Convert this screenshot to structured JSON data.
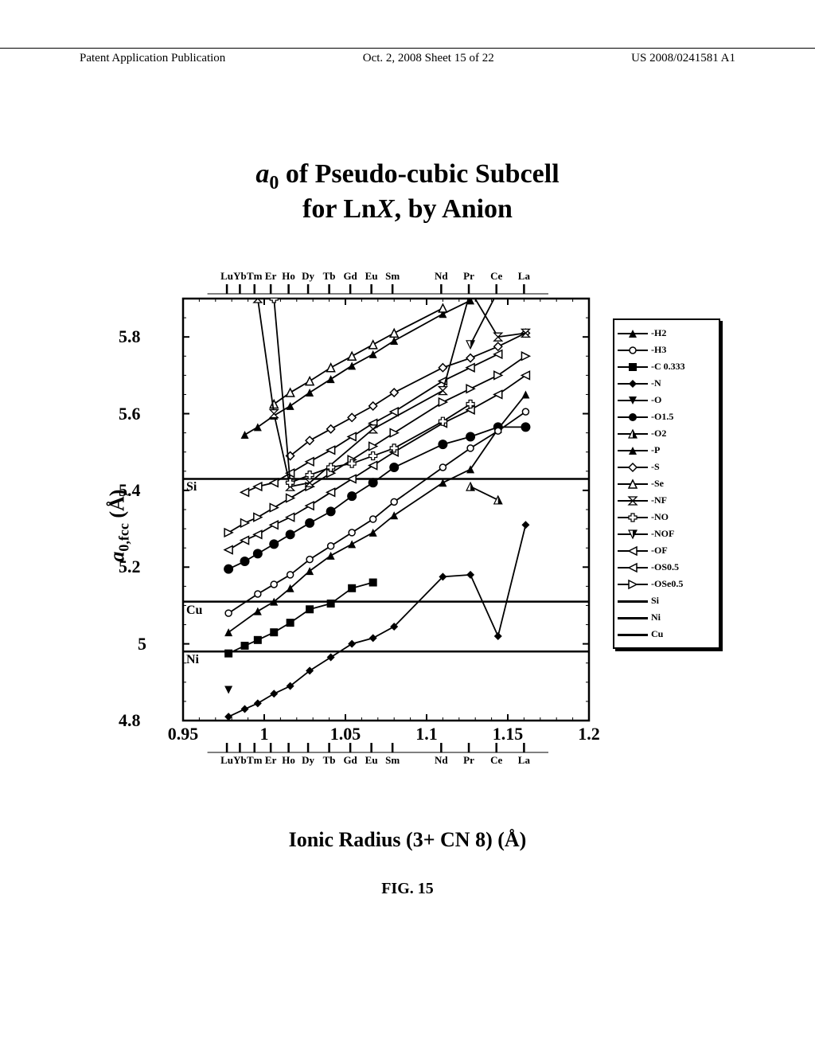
{
  "header": {
    "left": "Patent Application Publication",
    "center": "Oct. 2, 2008  Sheet 15 of 22",
    "right": "US 2008/0241581 A1"
  },
  "title": {
    "line1_italic": "a",
    "line1_sub": "0",
    "line1_rest": " of Pseudo-cubic Subcell",
    "line2": "for Ln",
    "line2_italic": "X",
    "line2_rest": ", by Anion"
  },
  "axes": {
    "xlabel": "Ionic Radius (3+ CN 8) (Å)",
    "ylabel_a": "a",
    "ylabel_sub": "0,fcc",
    "ylabel_unit": " (Å)",
    "xlim": [
      0.95,
      1.2
    ],
    "ylim": [
      4.8,
      5.9
    ],
    "xticks": [
      0.95,
      1,
      1.05,
      1.1,
      1.15,
      1.2
    ],
    "yticks": [
      4.8,
      5,
      5.2,
      5.4,
      5.6,
      5.8
    ]
  },
  "top_elements": [
    {
      "label": "Lu",
      "x": 0.977
    },
    {
      "label": "Yb",
      "x": 0.985
    },
    {
      "label": "Tm",
      "x": 0.994
    },
    {
      "label": "Er",
      "x": 1.004
    },
    {
      "label": "Ho",
      "x": 1.015
    },
    {
      "label": "Dy",
      "x": 1.027
    },
    {
      "label": "Tb",
      "x": 1.04
    },
    {
      "label": "Gd",
      "x": 1.053
    },
    {
      "label": "Eu",
      "x": 1.066
    },
    {
      "label": "Sm",
      "x": 1.079
    },
    {
      "label": "Nd",
      "x": 1.109
    },
    {
      "label": "Pr",
      "x": 1.126
    },
    {
      "label": "Ce",
      "x": 1.143
    },
    {
      "label": "La",
      "x": 1.16
    }
  ],
  "hlines": [
    {
      "label": "Si",
      "y": 5.43
    },
    {
      "label": "Cu",
      "y": 5.11
    },
    {
      "label": "Ni",
      "y": 4.98
    }
  ],
  "legend": [
    {
      "label": "-H2",
      "marker": "tri-up-filled"
    },
    {
      "label": "-H3",
      "marker": "circle-open"
    },
    {
      "label": "-C 0.333",
      "marker": "square-filled"
    },
    {
      "label": "-N",
      "marker": "diamond-filled"
    },
    {
      "label": "-O",
      "marker": "tri-down-filled"
    },
    {
      "label": "-O1.5",
      "marker": "circle-filled"
    },
    {
      "label": "-O2",
      "marker": "tri-up-half"
    },
    {
      "label": "-P",
      "marker": "tri-up-filled"
    },
    {
      "label": "-S",
      "marker": "diamond-open"
    },
    {
      "label": "-Se",
      "marker": "tri-up-open"
    },
    {
      "label": "-NF",
      "marker": "hourglass"
    },
    {
      "label": "-NO",
      "marker": "plus-open"
    },
    {
      "label": "-NOF",
      "marker": "tri-down-half"
    },
    {
      "label": "-OF",
      "marker": "tri-left-open"
    },
    {
      "label": "-OS0.5",
      "marker": "tri-left-open"
    },
    {
      "label": "-OSe0.5",
      "marker": "tri-right-open"
    },
    {
      "label": "Si",
      "marker": "line"
    },
    {
      "label": "Ni",
      "marker": "line"
    },
    {
      "label": "Cu",
      "marker": "line"
    }
  ],
  "series": {
    "N": [
      [
        0.978,
        4.81
      ],
      [
        0.988,
        4.83
      ],
      [
        0.996,
        4.845
      ],
      [
        1.006,
        4.87
      ],
      [
        1.016,
        4.89
      ],
      [
        1.028,
        4.93
      ],
      [
        1.041,
        4.965
      ],
      [
        1.054,
        5.0
      ],
      [
        1.067,
        5.015
      ],
      [
        1.08,
        5.045
      ],
      [
        1.11,
        5.175
      ],
      [
        1.127,
        5.18
      ],
      [
        1.144,
        5.02
      ],
      [
        1.161,
        5.31
      ]
    ],
    "C": [
      [
        0.978,
        4.975
      ],
      [
        0.988,
        4.995
      ],
      [
        0.996,
        5.01
      ],
      [
        1.006,
        5.03
      ],
      [
        1.016,
        5.055
      ],
      [
        1.028,
        5.09
      ],
      [
        1.041,
        5.105
      ],
      [
        1.054,
        5.145
      ],
      [
        1.067,
        5.16
      ]
    ],
    "O": [
      [
        0.978,
        4.88
      ]
    ],
    "H2": [
      [
        0.978,
        5.03
      ],
      [
        0.996,
        5.085
      ],
      [
        1.006,
        5.11
      ],
      [
        1.016,
        5.145
      ],
      [
        1.028,
        5.19
      ],
      [
        1.041,
        5.23
      ],
      [
        1.054,
        5.26
      ],
      [
        1.067,
        5.29
      ],
      [
        1.08,
        5.335
      ],
      [
        1.11,
        5.42
      ],
      [
        1.127,
        5.455
      ],
      [
        1.144,
        5.56
      ],
      [
        1.161,
        5.65
      ]
    ],
    "P": [
      [
        0.988,
        5.545
      ],
      [
        0.996,
        5.565
      ],
      [
        1.006,
        5.595
      ],
      [
        1.016,
        5.62
      ],
      [
        1.028,
        5.655
      ],
      [
        1.041,
        5.69
      ],
      [
        1.054,
        5.725
      ],
      [
        1.067,
        5.755
      ],
      [
        1.08,
        5.79
      ],
      [
        1.11,
        5.86
      ],
      [
        1.127,
        5.895
      ]
    ],
    "O15": [
      [
        0.978,
        5.195
      ],
      [
        0.988,
        5.215
      ],
      [
        0.996,
        5.235
      ],
      [
        1.006,
        5.26
      ],
      [
        1.016,
        5.285
      ],
      [
        1.028,
        5.315
      ],
      [
        1.041,
        5.345
      ],
      [
        1.054,
        5.385
      ],
      [
        1.067,
        5.42
      ],
      [
        1.08,
        5.46
      ],
      [
        1.11,
        5.52
      ],
      [
        1.127,
        5.54
      ],
      [
        1.144,
        5.565
      ],
      [
        1.161,
        5.565
      ]
    ],
    "S": [
      [
        1.016,
        5.49
      ],
      [
        1.028,
        5.53
      ],
      [
        1.041,
        5.56
      ],
      [
        1.054,
        5.59
      ],
      [
        1.067,
        5.62
      ],
      [
        1.08,
        5.655
      ],
      [
        1.11,
        5.72
      ],
      [
        1.127,
        5.745
      ],
      [
        1.144,
        5.775
      ],
      [
        1.161,
        5.81
      ]
    ],
    "Se": [
      [
        1.006,
        5.625
      ],
      [
        1.016,
        5.655
      ],
      [
        1.028,
        5.685
      ],
      [
        1.041,
        5.72
      ],
      [
        1.054,
        5.75
      ],
      [
        1.067,
        5.78
      ],
      [
        1.08,
        5.81
      ],
      [
        1.11,
        5.875
      ]
    ],
    "H3": [
      [
        0.978,
        5.08
      ],
      [
        0.996,
        5.13
      ],
      [
        1.006,
        5.155
      ],
      [
        1.016,
        5.18
      ],
      [
        1.028,
        5.22
      ],
      [
        1.041,
        5.255
      ],
      [
        1.054,
        5.29
      ],
      [
        1.067,
        5.325
      ],
      [
        1.08,
        5.37
      ],
      [
        1.11,
        5.46
      ],
      [
        1.127,
        5.51
      ],
      [
        1.144,
        5.555
      ],
      [
        1.161,
        5.605
      ]
    ],
    "OF": [
      [
        0.988,
        5.395
      ],
      [
        0.996,
        5.41
      ],
      [
        1.006,
        5.42
      ],
      [
        1.016,
        5.445
      ],
      [
        1.028,
        5.475
      ],
      [
        1.041,
        5.505
      ],
      [
        1.054,
        5.54
      ],
      [
        1.067,
        5.575
      ],
      [
        1.08,
        5.605
      ],
      [
        1.11,
        5.685
      ],
      [
        1.127,
        5.72
      ],
      [
        1.144,
        5.755
      ]
    ],
    "OS": [
      [
        0.978,
        5.245
      ],
      [
        0.988,
        5.27
      ],
      [
        0.996,
        5.285
      ],
      [
        1.006,
        5.31
      ],
      [
        1.016,
        5.33
      ],
      [
        1.028,
        5.36
      ],
      [
        1.041,
        5.395
      ],
      [
        1.054,
        5.43
      ],
      [
        1.067,
        5.465
      ],
      [
        1.08,
        5.5
      ],
      [
        1.11,
        5.575
      ],
      [
        1.127,
        5.61
      ],
      [
        1.144,
        5.65
      ],
      [
        1.161,
        5.7
      ]
    ],
    "OSe": [
      [
        0.978,
        5.29
      ],
      [
        0.988,
        5.315
      ],
      [
        0.996,
        5.33
      ],
      [
        1.006,
        5.355
      ],
      [
        1.016,
        5.38
      ],
      [
        1.028,
        5.41
      ],
      [
        1.041,
        5.445
      ],
      [
        1.054,
        5.48
      ],
      [
        1.067,
        5.515
      ],
      [
        1.08,
        5.55
      ],
      [
        1.11,
        5.63
      ],
      [
        1.127,
        5.665
      ],
      [
        1.144,
        5.7
      ],
      [
        1.161,
        5.75
      ]
    ],
    "NF": [
      [
        0.996,
        5.9
      ],
      [
        1.006,
        5.6
      ],
      [
        1.016,
        5.41
      ],
      [
        1.028,
        5.42
      ],
      [
        1.067,
        5.56
      ],
      [
        1.11,
        5.66
      ],
      [
        1.127,
        5.92
      ],
      [
        1.144,
        5.8
      ],
      [
        1.161,
        5.81
      ]
    ],
    "NO": [
      [
        1.006,
        5.9
      ],
      [
        1.016,
        5.42
      ],
      [
        1.028,
        5.44
      ],
      [
        1.041,
        5.46
      ],
      [
        1.054,
        5.47
      ],
      [
        1.067,
        5.49
      ],
      [
        1.08,
        5.51
      ],
      [
        1.11,
        5.58
      ],
      [
        1.127,
        5.625
      ]
    ],
    "O2": [
      [
        1.127,
        5.41
      ],
      [
        1.144,
        5.375
      ]
    ],
    "NOF": [
      [
        1.127,
        5.78
      ],
      [
        1.144,
        5.92
      ]
    ]
  },
  "fig_caption": "FIG. 15",
  "colors": {
    "line": "#000000",
    "background": "#ffffff"
  }
}
